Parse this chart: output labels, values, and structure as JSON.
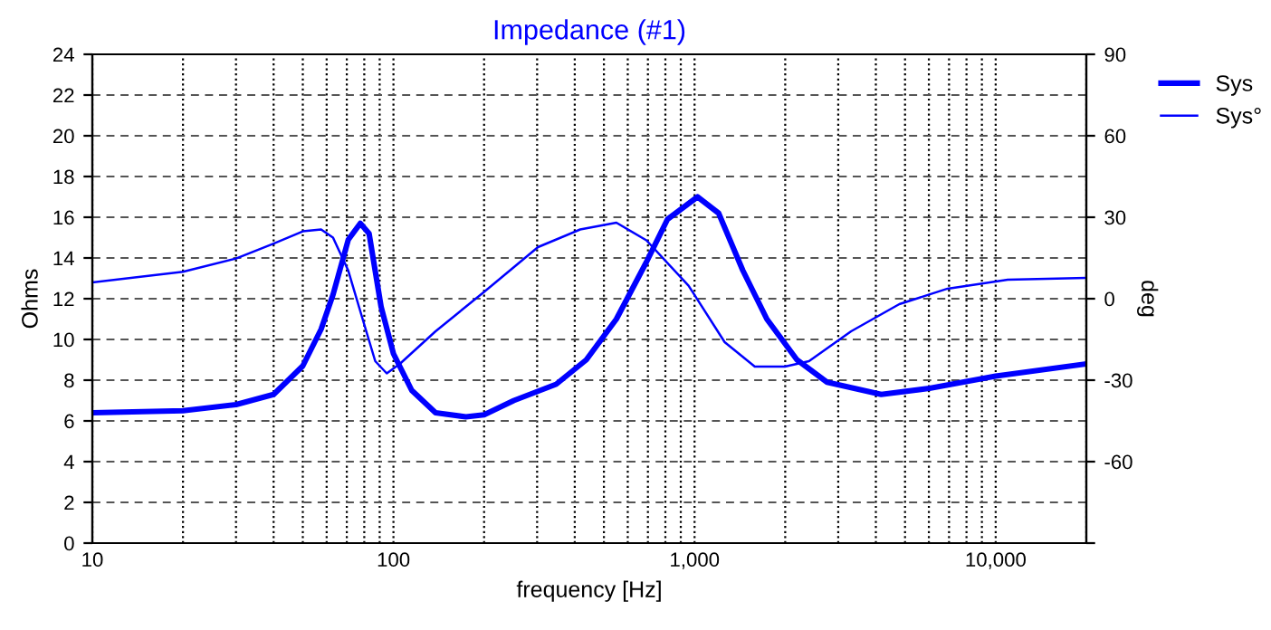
{
  "chart_data": {
    "type": "line",
    "title": "Impedance (#1)",
    "xlabel": "frequency [Hz]",
    "ylabel": "Ohms",
    "y2label": "deg",
    "log": "x",
    "grid": true,
    "legend": "top right",
    "xlim": [
      10,
      20000
    ],
    "xticks": [
      10,
      {
        "value": 20,
        "label": null
      },
      {
        "value": 30,
        "label": null
      },
      {
        "value": 40,
        "label": null
      },
      {
        "value": 50,
        "label": null
      },
      {
        "value": 60,
        "label": null
      },
      {
        "value": 70,
        "label": null
      },
      {
        "value": 80,
        "label": null
      },
      {
        "value": 90,
        "label": null
      },
      100,
      {
        "value": 200,
        "label": null
      },
      {
        "value": 300,
        "label": null
      },
      {
        "value": 400,
        "label": null
      },
      {
        "value": 500,
        "label": null
      },
      {
        "value": 600,
        "label": null
      },
      {
        "value": 700,
        "label": null
      },
      {
        "value": 800,
        "label": null
      },
      {
        "value": 900,
        "label": null
      },
      {
        "value": 1000,
        "label": "1,000"
      },
      {
        "value": 2000,
        "label": null
      },
      {
        "value": 3000,
        "label": null
      },
      {
        "value": 4000,
        "label": null
      },
      {
        "value": 5000,
        "label": null
      },
      {
        "value": 6000,
        "label": null
      },
      {
        "value": 7000,
        "label": null
      },
      {
        "value": 8000,
        "label": null
      },
      {
        "value": 9000,
        "label": null
      },
      {
        "value": 10000,
        "label": "10,000"
      },
      {
        "value": 20000,
        "label": null
      }
    ],
    "ylim": [
      0,
      24
    ],
    "yticks": [
      0,
      2,
      4,
      6,
      8,
      10,
      12,
      14,
      16,
      18,
      20,
      22,
      24
    ],
    "y2lim": [
      -90,
      90
    ],
    "y2ticks": [
      {
        "value": -90,
        "label": null
      },
      -60,
      -30,
      0,
      30,
      60,
      90
    ],
    "series": [
      {
        "name": "Sys",
        "color": "#0000ff",
        "line_style": "solid",
        "x": [
          10,
          20,
          30,
          40,
          50,
          57.5,
          63,
          70.8,
          77.6,
          83,
          91,
          100,
          115,
          138,
          174,
          200,
          251,
          347,
          437,
          550,
          692,
          813,
          1023,
          1202,
          1445,
          1738,
          2188,
          2754,
          4169,
          6026,
          10000,
          20000
        ],
        "values": [
          6.4,
          6.5,
          6.8,
          7.3,
          8.7,
          10.5,
          12.2,
          14.9,
          15.7,
          15.2,
          11.6,
          9.3,
          7.5,
          6.4,
          6.2,
          6.3,
          7.0,
          7.8,
          9.0,
          11.0,
          13.8,
          15.9,
          17.0,
          16.2,
          13.4,
          11.0,
          9.0,
          7.9,
          7.3,
          7.6,
          8.2,
          8.8
        ]
      },
      {
        "name": "Sys°",
        "color": "#0000ff",
        "line_style": "solid",
        "axis": "y2",
        "x": [
          10,
          20,
          30,
          40,
          50,
          57.5,
          63,
          70.8,
          79,
          87,
          95,
          105,
          138,
          200,
          302,
          417,
          550,
          692,
          955,
          1259,
          1585,
          1995,
          2399,
          3311,
          4786,
          6918,
          10965,
          20000
        ],
        "values": [
          6,
          9.9,
          14.8,
          20.3,
          24.8,
          25.5,
          22.5,
          10.3,
          -7.5,
          -23,
          -27.5,
          -24,
          -12,
          2.5,
          19,
          25.5,
          28,
          21.5,
          4.8,
          -16,
          -25,
          -25,
          -23,
          -12,
          -2,
          3.7,
          7,
          7.7
        ]
      }
    ]
  }
}
